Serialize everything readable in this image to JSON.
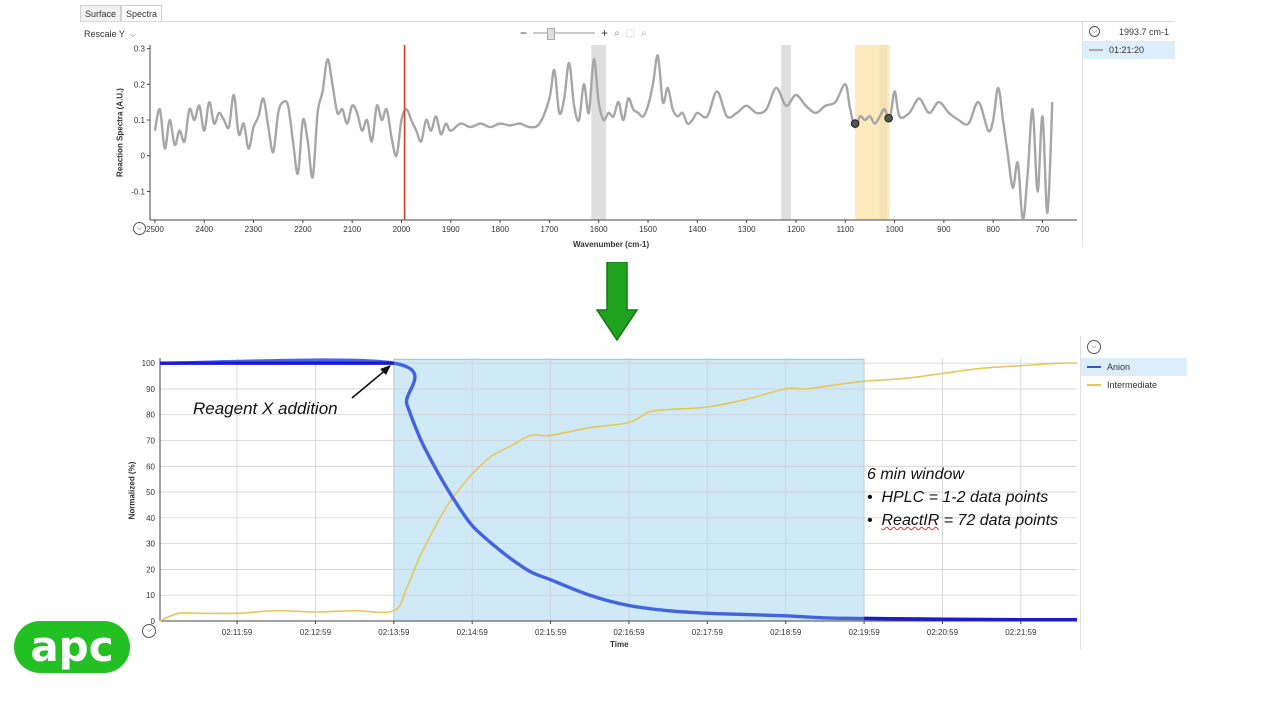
{
  "top_app": {
    "tabs": [
      "Surface",
      "Spectra"
    ],
    "active_tab": "Spectra",
    "rescale_label": "Rescale Y",
    "zoom_minus": "−",
    "zoom_plus": "+",
    "side_panel": {
      "header": "1993.7 cm-1",
      "items": [
        "01:21:20"
      ]
    }
  },
  "bottom_app": {
    "legend": [
      {
        "label": "Anion",
        "color": "#3355dd"
      },
      {
        "label": "Intermediate",
        "color": "#e6c85a"
      }
    ]
  },
  "annotations": {
    "reagent": "Reagent X addition",
    "window_title": "6 min window",
    "hplc_prefix": "HPLC = 1-2 data points",
    "reactir_word": "ReactIR",
    "reactir_rest": " = 72 data points",
    "bullet": "•"
  },
  "logo_text": "apc",
  "icons": [
    "chevron-down-icon",
    "zoom-icon",
    "zoom-region-icon",
    "zoom-reset-icon",
    "down-arrow-icon"
  ],
  "chart_data": [
    {
      "type": "line",
      "xlabel": "Wavenumber (cm-1)",
      "ylabel": "Reaction Spectra (A.U.)",
      "xlim": [
        2510,
        630
      ],
      "ylim": [
        -0.18,
        0.31
      ],
      "x_reversed": true,
      "xticks": [
        2500,
        2400,
        2300,
        2200,
        2100,
        2000,
        1900,
        1800,
        1700,
        1600,
        1500,
        1400,
        1300,
        1200,
        1100,
        1000,
        900,
        800,
        700
      ],
      "yticks": [
        0.3,
        0.2,
        0.1,
        0,
        -0.1
      ],
      "series": [
        {
          "color": "#a6a6a6",
          "x": [
            2500,
            2490,
            2480,
            2470,
            2460,
            2450,
            2440,
            2430,
            2420,
            2410,
            2400,
            2390,
            2380,
            2370,
            2360,
            2350,
            2340,
            2330,
            2320,
            2310,
            2300,
            2290,
            2280,
            2270,
            2260,
            2250,
            2240,
            2230,
            2220,
            2210,
            2200,
            2190,
            2180,
            2170,
            2160,
            2150,
            2140,
            2130,
            2120,
            2110,
            2100,
            2090,
            2080,
            2070,
            2060,
            2050,
            2040,
            2030,
            2020,
            2010,
            2000,
            1990,
            1980,
            1970,
            1960,
            1950,
            1940,
            1930,
            1920,
            1910,
            1900,
            1880,
            1860,
            1840,
            1820,
            1800,
            1780,
            1760,
            1740,
            1720,
            1700,
            1690,
            1680,
            1670,
            1660,
            1650,
            1640,
            1630,
            1620,
            1610,
            1600,
            1590,
            1580,
            1570,
            1560,
            1550,
            1540,
            1530,
            1520,
            1510,
            1500,
            1490,
            1480,
            1470,
            1460,
            1450,
            1440,
            1430,
            1420,
            1410,
            1400,
            1380,
            1360,
            1340,
            1320,
            1300,
            1280,
            1260,
            1240,
            1220,
            1200,
            1180,
            1160,
            1140,
            1120,
            1100,
            1090,
            1080,
            1070,
            1060,
            1050,
            1040,
            1030,
            1020,
            1010,
            1000,
            990,
            970,
            950,
            930,
            910,
            890,
            870,
            850,
            830,
            810,
            800,
            790,
            780,
            770,
            760,
            750,
            740,
            730,
            720,
            710,
            700,
            690,
            680
          ],
          "y": [
            0.07,
            0.13,
            0.02,
            0.1,
            0.03,
            0.07,
            0.04,
            0.13,
            0.1,
            0.14,
            0.07,
            0.15,
            0.09,
            0.12,
            0.1,
            0.08,
            0.17,
            0.06,
            0.09,
            0.02,
            0.08,
            0.11,
            0.16,
            0.08,
            0.01,
            0.12,
            0.15,
            0.14,
            0.04,
            -0.05,
            0.1,
            0.04,
            -0.06,
            0.12,
            0.18,
            0.27,
            0.2,
            0.12,
            0.13,
            0.09,
            0.14,
            0.12,
            0.07,
            0.1,
            0.04,
            0.14,
            0.1,
            0.13,
            0.05,
            0.0,
            0.1,
            0.13,
            0.1,
            0.07,
            0.04,
            0.1,
            0.07,
            0.11,
            0.06,
            0.09,
            0.07,
            0.09,
            0.08,
            0.09,
            0.08,
            0.09,
            0.085,
            0.09,
            0.08,
            0.09,
            0.16,
            0.24,
            0.12,
            0.16,
            0.26,
            0.14,
            0.1,
            0.2,
            0.12,
            0.27,
            0.15,
            0.1,
            0.12,
            0.11,
            0.15,
            0.1,
            0.16,
            0.13,
            0.12,
            0.11,
            0.14,
            0.2,
            0.28,
            0.15,
            0.19,
            0.13,
            0.11,
            0.12,
            0.09,
            0.1,
            0.12,
            0.11,
            0.18,
            0.11,
            0.12,
            0.14,
            0.12,
            0.13,
            0.19,
            0.14,
            0.17,
            0.14,
            0.12,
            0.14,
            0.15,
            0.2,
            0.13,
            0.08,
            0.11,
            0.1,
            0.11,
            0.09,
            0.11,
            0.13,
            0.1,
            0.18,
            0.11,
            0.12,
            0.16,
            0.12,
            0.15,
            0.12,
            0.1,
            0.09,
            0.15,
            0.07,
            0.1,
            0.19,
            0.1,
            0.0,
            -0.09,
            -0.02,
            -0.18,
            -0.05,
            0.13,
            -0.1,
            0.11,
            -0.16,
            0.15
          ]
        }
      ],
      "marker_line_x": 1993.7,
      "shaded_bands": [
        [
          1615,
          1585
        ],
        [
          1230,
          1210
        ],
        [
          1030,
          1015
        ]
      ],
      "highlight_band": [
        1080,
        1010
      ],
      "band_end_points": [
        [
          1080,
          0.09
        ],
        [
          1012,
          0.105
        ]
      ]
    },
    {
      "type": "line",
      "xlabel": "Time",
      "ylabel": "Normalized (%)",
      "xlim": [
        "02:11:00",
        "02:22:42"
      ],
      "ylim": [
        0,
        102
      ],
      "xticks": [
        "02:11:59",
        "02:12:59",
        "02:13:59",
        "02:14:59",
        "02:15:59",
        "02:16:59",
        "02:17:59",
        "02:18:59",
        "02:19:59",
        "02:20:59",
        "02:21:59"
      ],
      "yticks": [
        0,
        10,
        20,
        30,
        40,
        50,
        60,
        70,
        80,
        90,
        100
      ],
      "highlight_window": [
        "02:13:59",
        "02:19:59"
      ],
      "series": [
        {
          "name": "Anion",
          "color": "#3355dd",
          "x": [
            "02:11:00",
            "02:13:59",
            "02:14:09",
            "02:14:19",
            "02:14:29",
            "02:14:39",
            "02:14:49",
            "02:14:59",
            "02:15:14",
            "02:15:29",
            "02:15:44",
            "02:15:59",
            "02:16:29",
            "02:16:59",
            "02:17:29",
            "02:17:59",
            "02:18:29",
            "02:18:59",
            "02:19:29",
            "02:19:59",
            "02:20:59",
            "02:21:59",
            "02:22:42"
          ],
          "y": [
            100,
            100,
            84,
            71,
            61,
            52,
            44,
            37,
            30,
            24,
            19,
            16,
            10,
            6,
            4,
            3,
            2.5,
            2,
            1.2,
            1,
            0.7,
            0.5,
            0.5
          ]
        },
        {
          "name": "Intermediate",
          "color": "#e6c85a",
          "x": [
            "02:11:00",
            "02:11:14",
            "02:11:29",
            "02:11:59",
            "02:12:29",
            "02:12:59",
            "02:13:29",
            "02:13:59",
            "02:14:09",
            "02:14:19",
            "02:14:29",
            "02:14:39",
            "02:14:49",
            "02:14:59",
            "02:15:14",
            "02:15:29",
            "02:15:44",
            "02:15:59",
            "02:16:29",
            "02:16:59",
            "02:17:14",
            "02:17:29",
            "02:17:59",
            "02:18:29",
            "02:18:59",
            "02:19:14",
            "02:19:29",
            "02:19:59",
            "02:20:29",
            "02:20:59",
            "02:21:29",
            "02:21:59",
            "02:22:29",
            "02:22:42"
          ],
          "y": [
            0,
            3,
            3,
            3,
            4,
            3.5,
            4,
            4,
            13,
            25,
            35,
            44,
            51,
            57,
            64,
            68,
            72,
            72,
            75,
            77,
            81,
            82,
            83,
            86,
            90,
            90,
            91,
            93,
            94,
            96,
            98,
            99,
            100,
            100
          ]
        }
      ]
    }
  ]
}
